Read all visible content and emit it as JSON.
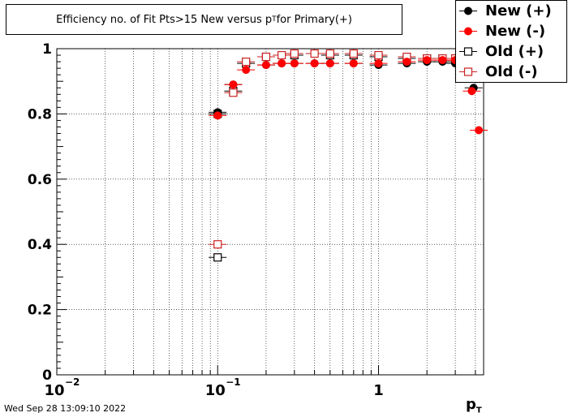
{
  "title_prefix": "Efficiency no. of Fit Pts>15 New versus p",
  "title_sub": "T",
  "title_suffix": " for Primary(+)",
  "timestamp": "Wed Sep 28 13:09:10 2022",
  "chart_data": {
    "type": "scatter",
    "title": "Efficiency no. of Fit Pts>15 New versus pT for Primary(+)",
    "xlabel_main": "p",
    "xlabel_sub": "T",
    "ylabel": "",
    "xscale": "log",
    "xlim": [
      0.01,
      4.5
    ],
    "ylim": [
      0,
      1.0
    ],
    "grid": true,
    "legend_position": "top-right",
    "x_ticks": [
      {
        "value": 0.01,
        "base": "10",
        "exp": "−2"
      },
      {
        "value": 0.1,
        "base": "10",
        "exp": "−1"
      },
      {
        "value": 1,
        "base": "1",
        "exp": ""
      }
    ],
    "y_ticks": [
      "0",
      "0.2",
      "0.4",
      "0.6",
      "0.8",
      "1"
    ],
    "series": [
      {
        "name": "New (+)",
        "color": "#000000",
        "marker": "filled-circle",
        "x": [
          0.1,
          0.125,
          0.2,
          0.25,
          0.3,
          0.4,
          0.5,
          0.7,
          1.0,
          1.5,
          2.0,
          2.5,
          3.0,
          3.5,
          3.9
        ],
        "y": [
          0.805,
          0.89,
          0.95,
          0.955,
          0.955,
          0.955,
          0.955,
          0.955,
          0.95,
          0.955,
          0.96,
          0.96,
          0.955,
          0.93,
          0.88
        ]
      },
      {
        "name": "New (-)",
        "color": "#ff0000",
        "marker": "filled-circle",
        "x": [
          0.1,
          0.125,
          0.15,
          0.2,
          0.25,
          0.3,
          0.4,
          0.5,
          0.7,
          1.0,
          1.5,
          2.0,
          2.5,
          3.0,
          3.5,
          3.8,
          4.2
        ],
        "y": [
          0.795,
          0.89,
          0.935,
          0.95,
          0.955,
          0.955,
          0.955,
          0.955,
          0.955,
          0.955,
          0.96,
          0.965,
          0.965,
          0.965,
          0.925,
          0.87,
          0.75
        ]
      },
      {
        "name": "Old (+)",
        "color": "#000000",
        "marker": "open-square",
        "x": [
          0.1,
          0.1,
          0.125,
          0.15,
          0.2,
          0.3,
          0.5,
          0.7,
          1.0,
          1.5,
          2.0,
          2.5,
          3.0,
          3.5
        ],
        "y": [
          0.36,
          0.8,
          0.87,
          0.955,
          0.975,
          0.98,
          0.98,
          0.98,
          0.975,
          0.97,
          0.97,
          0.97,
          0.965,
          0.96
        ]
      },
      {
        "name": "Old (-)",
        "color": "#cc2222",
        "marker": "open-square",
        "x": [
          0.1,
          0.125,
          0.15,
          0.2,
          0.25,
          0.3,
          0.4,
          0.5,
          0.7,
          1.0,
          1.5,
          2.0,
          2.5,
          3.0,
          3.5,
          3.8
        ],
        "y": [
          0.4,
          0.865,
          0.96,
          0.975,
          0.98,
          0.985,
          0.985,
          0.985,
          0.985,
          0.98,
          0.975,
          0.97,
          0.97,
          0.97,
          0.96,
          0.93
        ]
      }
    ]
  }
}
